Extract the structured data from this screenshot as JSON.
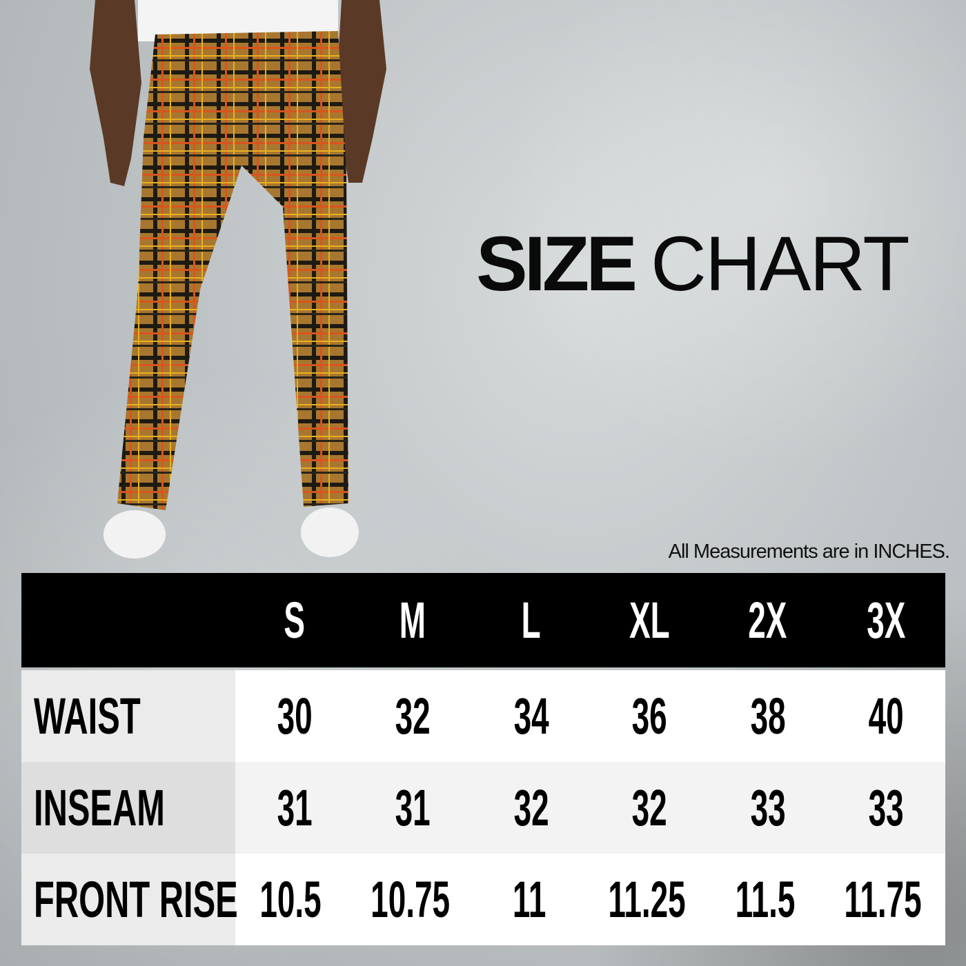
{
  "title": {
    "bold": "SIZE",
    "light": "CHART"
  },
  "note": "All Measurements are in INCHES.",
  "table": {
    "sizes": [
      "S",
      "M",
      "L",
      "XL",
      "2X",
      "3X"
    ],
    "rows": [
      {
        "label": "WAIST",
        "values": [
          "30",
          "32",
          "34",
          "36",
          "38",
          "40"
        ]
      },
      {
        "label": "INSEAM",
        "values": [
          "31",
          "31",
          "32",
          "32",
          "33",
          "33"
        ]
      },
      {
        "label": "FRONT RISE",
        "values": [
          "10.5",
          "10.75",
          "11",
          "11.25",
          "11.5",
          "11.75"
        ]
      }
    ]
  },
  "colors": {
    "header_bg": "#000000",
    "plaid_base": "#a8772f",
    "plaid_line_yellow": "#e8b020",
    "plaid_line_orange": "#d9541e"
  }
}
